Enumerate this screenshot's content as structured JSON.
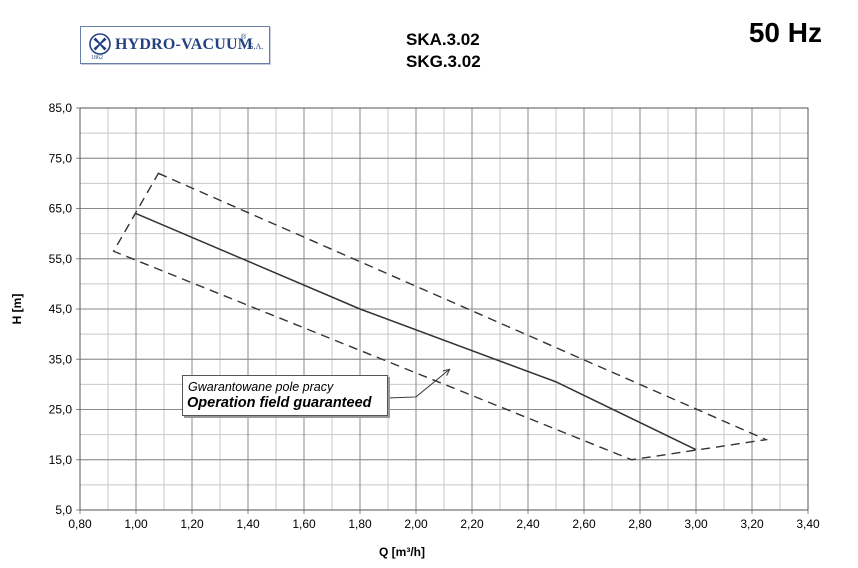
{
  "logo": {
    "company": "HYDRO-VACUUM",
    "registered": "®",
    "suffix": "S.A.",
    "year": "1862",
    "icon": "company-emblem-icon"
  },
  "header": {
    "model_lines": [
      "SKA.3.02",
      "SKG.3.02"
    ],
    "frequency": "50 Hz"
  },
  "annotation": {
    "line_pl": "Gwarantowane pole pracy",
    "line_en": "Operation field guaranteed"
  },
  "chart_data": {
    "type": "line",
    "xlabel": "Q [m³/h]",
    "ylabel": "H [m]",
    "xlim": [
      0.8,
      3.4
    ],
    "ylim": [
      5,
      85
    ],
    "x_ticks": [
      0.8,
      1.0,
      1.2,
      1.4,
      1.6,
      1.8,
      2.0,
      2.2,
      2.4,
      2.6,
      2.8,
      3.0,
      3.2,
      3.4
    ],
    "x_tick_labels": [
      "0,80",
      "1,00",
      "1,20",
      "1,40",
      "1,60",
      "1,80",
      "2,00",
      "2,20",
      "2,40",
      "2,60",
      "2,80",
      "3,00",
      "3,20",
      "3,40"
    ],
    "y_ticks": [
      5,
      15,
      25,
      35,
      45,
      55,
      65,
      75,
      85
    ],
    "y_tick_labels": [
      "5,0",
      "15,0",
      "25,0",
      "35,0",
      "45,0",
      "55,0",
      "65,0",
      "75,0",
      "85,0"
    ],
    "x_minor_step": 0.1,
    "y_minor_step": 5,
    "grid": true,
    "series": [
      {
        "style": "solid",
        "color": "#333333",
        "x": [
          1.0,
          1.8,
          2.5,
          3.0
        ],
        "y": [
          64,
          45,
          30.5,
          17
        ]
      },
      {
        "style": "dashed",
        "color": "#333333",
        "closed": true,
        "x": [
          1.08,
          3.25,
          2.77,
          0.92
        ],
        "y": [
          72,
          19,
          15,
          56.5
        ]
      }
    ],
    "annotation_arrow": {
      "from": {
        "x": 2.0,
        "y": 27.5
      },
      "to": {
        "x": 2.12,
        "y": 33
      }
    }
  }
}
